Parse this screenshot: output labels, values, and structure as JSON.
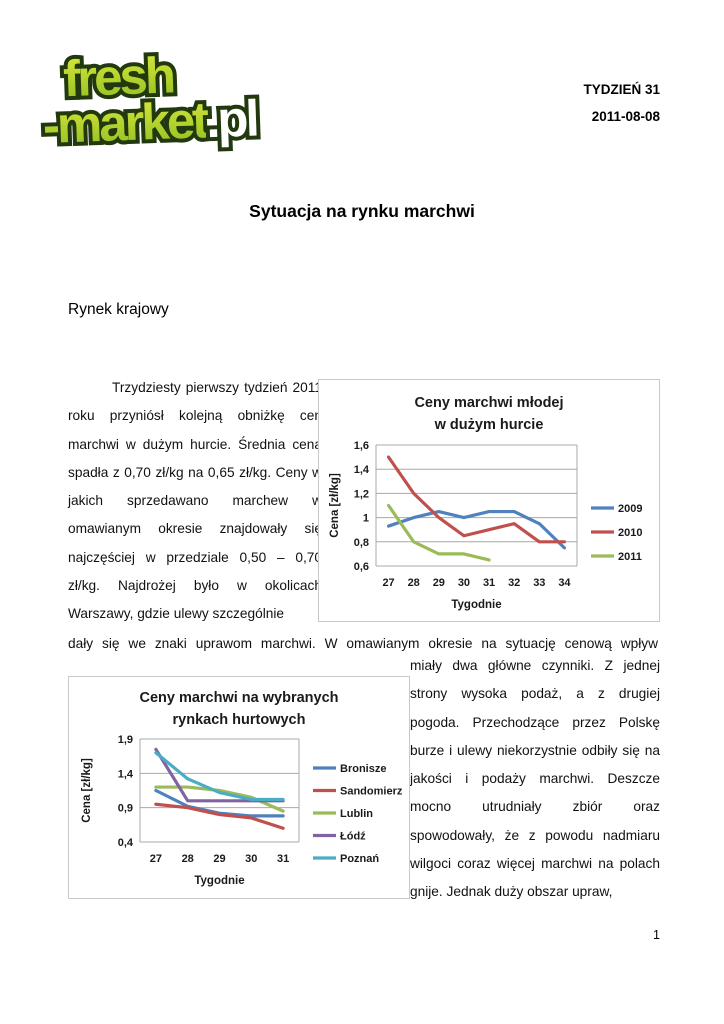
{
  "header": {
    "logo": {
      "word1": "fresh",
      "word2": "-market",
      "word2_suffix": ".pl",
      "brand_green": "#a8cc29",
      "brand_outline": "#22380e"
    },
    "week_label": "TYDZIEŃ 31",
    "date": "2011-08-08"
  },
  "document": {
    "title": "Sytuacja na rynku marchwi",
    "section_heading": "Rynek krajowy",
    "paragraph_left": "Trzydziesty pierwszy tydzień 2011 roku przyniósł kolejną obniżkę cen marchwi w dużym hurcie. Średnia cena spadła z 0,70 zł/kg na 0,65 zł/kg. Ceny w jakich sprzedawano marchew w omawianym okresie znajdowały się najczęściej w przedziale 0,50 – 0,70 zł/kg. Najdrożej było w okolicach Warszawy, gdzie ulewy szczególnie",
    "paragraph_full": "dały się we znaki uprawom marchwi. W omawianym okresie na sytuację cenową wpływ",
    "paragraph_right": "miały dwa główne czynniki. Z jednej strony wysoka podaż, a z drugiej pogoda. Przechodzące przez Polskę burze i ulewy niekorzystnie odbiły się na jakości i podaży marchwi. Deszcze mocno utrudniały zbiór oraz spowodowały, że z powodu nadmiaru wilgoci coraz więcej marchwi na polach gnije. Jednak duży obszar upraw,",
    "page_number": "1"
  },
  "chart_data": [
    {
      "type": "line",
      "title": [
        "Ceny marchwi młodej",
        "w dużym hurcie"
      ],
      "xlabel": "Tygodnie",
      "ylabel": "Cena [zł/kg]",
      "x": [
        27,
        28,
        29,
        30,
        31,
        32,
        33,
        34
      ],
      "ylim": [
        0.6,
        1.6
      ],
      "ytick_values": [
        0.6,
        0.8,
        1.0,
        1.2,
        1.4,
        1.6
      ],
      "yticks": [
        "0,6",
        "0,8",
        "1",
        "1,2",
        "1,4",
        "1,6"
      ],
      "grid": true,
      "legend_position": "right",
      "series": [
        {
          "name": "2009",
          "color": "#4F81BD",
          "values": [
            0.93,
            1.0,
            1.05,
            1.0,
            1.05,
            1.05,
            0.95,
            0.75
          ]
        },
        {
          "name": "2010",
          "color": "#C0504D",
          "values": [
            1.5,
            1.2,
            1.0,
            0.85,
            0.9,
            0.95,
            0.8,
            0.8
          ]
        },
        {
          "name": "2011",
          "color": "#9BBB59",
          "values": [
            1.1,
            0.8,
            0.7,
            0.7,
            0.65
          ]
        }
      ]
    },
    {
      "type": "line",
      "title": [
        "Ceny marchwi na wybranych",
        "rynkach hurtowych"
      ],
      "xlabel": "Tygodnie",
      "ylabel": "Cena [zł/kg]",
      "x": [
        27,
        28,
        29,
        30,
        31
      ],
      "ylim": [
        0.4,
        1.9
      ],
      "ytick_values": [
        0.4,
        0.9,
        1.4,
        1.9
      ],
      "yticks": [
        "0,4",
        "0,9",
        "1,4",
        "1,9"
      ],
      "grid": true,
      "legend_position": "right",
      "series": [
        {
          "name": "Bronisze",
          "color": "#4F81BD",
          "values": [
            1.15,
            0.92,
            0.82,
            0.78,
            0.78
          ]
        },
        {
          "name": "Sandomierz",
          "color": "#C0504D",
          "values": [
            0.95,
            0.9,
            0.8,
            0.75,
            0.6
          ]
        },
        {
          "name": "Lublin",
          "color": "#9BBB59",
          "values": [
            1.2,
            1.2,
            1.15,
            1.05,
            0.85
          ]
        },
        {
          "name": "Łódź",
          "color": "#8064A2",
          "values": [
            1.75,
            1.0,
            1.0,
            1.0,
            1.0
          ]
        },
        {
          "name": "Poznań",
          "color": "#4BACC6",
          "values": [
            1.7,
            1.32,
            1.12,
            1.02,
            1.02
          ]
        }
      ]
    }
  ]
}
